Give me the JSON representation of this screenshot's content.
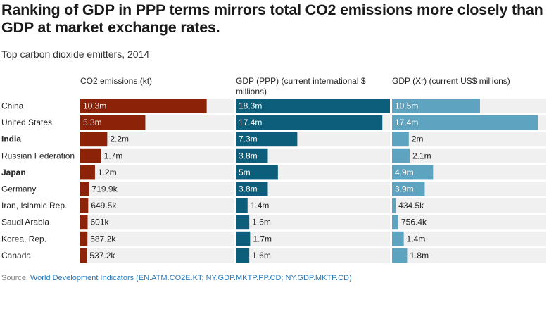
{
  "title": "Ranking of GDP in PPP terms mirrors total CO2 emissions more closely than GDP at market exchange rates.",
  "subtitle": "Top carbon dioxide emitters, 2014",
  "source_label": "Source:",
  "source_text": "World Development Indicators (EN.ATM.CO2E.KT; NY.GDP.MKTP.PP.CD; NY.GDP.MKTP.CD)",
  "colors": {
    "co2": "#8c2208",
    "gdp_ppp": "#0c5e7a",
    "gdp_xr": "#5ea3c0",
    "track": "#f0f0f0"
  },
  "chart_data": {
    "type": "bar",
    "orientation": "horizontal",
    "categories": [
      "China",
      "United States",
      "India",
      "Russian Federation",
      "Japan",
      "Germany",
      "Iran, Islamic Rep.",
      "Saudi Arabia",
      "Korea, Rep.",
      "Canada"
    ],
    "bold_categories": [
      "India",
      "Japan"
    ],
    "series": [
      {
        "name": "CO2 emissions (kt)",
        "values": [
          10300000,
          5300000,
          2200000,
          1700000,
          1200000,
          719900,
          649500,
          601000,
          587200,
          537200
        ],
        "labels": [
          "10.3m",
          "5.3m",
          "2.2m",
          "1.7m",
          "1.2m",
          "719.9k",
          "649.5k",
          "601k",
          "587.2k",
          "537.2k"
        ],
        "max": 12500000
      },
      {
        "name": "GDP (PPP) (current international $ millions)",
        "values": [
          18300000,
          17400000,
          7300000,
          3800000,
          5000000,
          3800000,
          1400000,
          1600000,
          1700000,
          1600000
        ],
        "labels": [
          "18.3m",
          "17.4m",
          "7.3m",
          "3.8m",
          "5m",
          "3.8m",
          "1.4m",
          "1.6m",
          "1.7m",
          "1.6m"
        ],
        "max": 18300000
      },
      {
        "name": "GDP (Xr) (current US$ millions)",
        "values": [
          10500000,
          17400000,
          2000000,
          2100000,
          4900000,
          3900000,
          434500,
          756400,
          1400000,
          1800000
        ],
        "labels": [
          "10.5m",
          "17.4m",
          "2m",
          "2.1m",
          "4.9m",
          "3.9m",
          "434.5k",
          "756.4k",
          "1.4m",
          "1.8m"
        ],
        "max": 18400000
      }
    ]
  }
}
